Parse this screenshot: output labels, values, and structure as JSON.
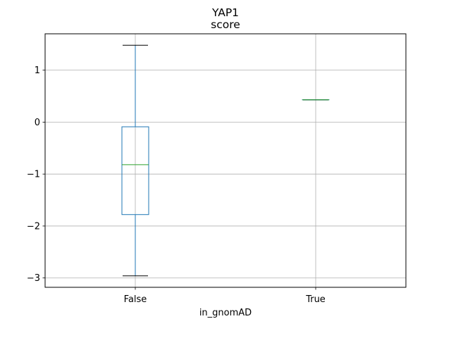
{
  "chart_data": {
    "type": "boxplot",
    "title": "YAP1",
    "subtitle": "score",
    "xlabel": "in_gnomAD",
    "ylabel": "",
    "categories": [
      "False",
      "True"
    ],
    "boxes": [
      {
        "category": "False",
        "whisker_low": -2.96,
        "q1": -1.78,
        "median": -0.82,
        "q3": -0.09,
        "whisker_high": 1.48
      },
      {
        "category": "True",
        "whisker_low": 0.43,
        "q1": 0.43,
        "median": 0.43,
        "q3": 0.43,
        "whisker_high": 0.43
      }
    ],
    "ylim": [
      -3.18,
      1.7
    ],
    "yticks": [
      1,
      0,
      -1,
      -2,
      -3
    ],
    "ytick_labels": [
      "1",
      "0",
      "−1",
      "−2",
      "−3"
    ],
    "grid": true,
    "colors": {
      "box": "#1f77b4",
      "median": "#2ca02c",
      "whisker": "#1f77b4",
      "cap": "#000000",
      "grid": "#b0b0b0"
    }
  }
}
